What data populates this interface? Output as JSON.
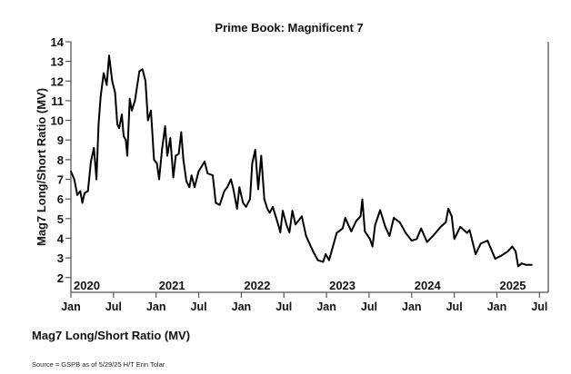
{
  "chart_data": {
    "type": "line",
    "title": "Prime Book: Magnificent 7",
    "xlabel": "",
    "ylabel": "Mag7 Long/Short Ratio (MV)",
    "ylim": [
      1.25,
      14
    ],
    "xlim": [
      2020.0,
      2025.6
    ],
    "yticks": [
      2,
      3,
      4,
      5,
      6,
      7,
      8,
      9,
      10,
      11,
      12,
      13,
      14
    ],
    "xticks": [
      {
        "x": 2020.0,
        "label": "Jan"
      },
      {
        "x": 2020.5,
        "label": "Jul"
      },
      {
        "x": 2021.0,
        "label": "Jan"
      },
      {
        "x": 2021.5,
        "label": "Jul"
      },
      {
        "x": 2022.0,
        "label": "Jan"
      },
      {
        "x": 2022.5,
        "label": "Jul"
      },
      {
        "x": 2023.0,
        "label": "Jan"
      },
      {
        "x": 2023.5,
        "label": "Jul"
      },
      {
        "x": 2024.0,
        "label": "Jan"
      },
      {
        "x": 2024.5,
        "label": "Jul"
      },
      {
        "x": 2025.0,
        "label": "Jan"
      },
      {
        "x": 2025.5,
        "label": "Jul"
      }
    ],
    "year_labels": [
      {
        "x": 2020.0,
        "label": "2020"
      },
      {
        "x": 2021.0,
        "label": "2021"
      },
      {
        "x": 2022.0,
        "label": "2022"
      },
      {
        "x": 2023.0,
        "label": "2023"
      },
      {
        "x": 2024.0,
        "label": "2024"
      },
      {
        "x": 2025.0,
        "label": "2025"
      }
    ],
    "grid": false,
    "series": [
      {
        "name": "Mag7 Long/Short Ratio (MV)",
        "color": "#000000",
        "x": [
          2020.0,
          2020.04,
          2020.075,
          2020.11,
          2020.135,
          2020.16,
          2020.2,
          2020.235,
          2020.27,
          2020.3,
          2020.324,
          2020.349,
          2020.384,
          2020.42,
          2020.448,
          2020.484,
          2020.519,
          2020.544,
          2020.566,
          2020.598,
          2020.619,
          2020.644,
          2020.662,
          2020.69,
          2020.715,
          2020.751,
          2020.804,
          2020.84,
          2020.875,
          2020.904,
          2020.939,
          2020.975,
          2021.01,
          2021.035,
          2021.071,
          2021.106,
          2021.131,
          2021.167,
          2021.202,
          2021.231,
          2021.266,
          2021.295,
          2021.32,
          2021.355,
          2021.391,
          2021.416,
          2021.451,
          2021.498,
          2021.569,
          2021.604,
          2021.665,
          2021.7,
          2021.747,
          2021.8,
          2021.836,
          2021.878,
          2021.907,
          2021.95,
          2021.978,
          2022.02,
          2022.056,
          2022.102,
          2022.128,
          2022.163,
          2022.199,
          2022.234,
          2022.27,
          2022.305,
          2022.334,
          2022.369,
          2022.405,
          2022.44,
          2022.458,
          2022.487,
          2022.529,
          2022.565,
          2022.6,
          2022.636,
          2022.69,
          2022.71,
          2022.76,
          2022.8,
          2022.85,
          2022.9,
          2022.96,
          2022.99,
          2023.03,
          2023.06,
          2023.12,
          2023.19,
          2023.22,
          2023.29,
          2023.35,
          2023.4,
          2023.42,
          2023.45,
          2023.51,
          2023.54,
          2023.57,
          2023.63,
          2023.69,
          2023.74,
          2023.79,
          2023.86,
          2023.93,
          2024.0,
          2024.06,
          2024.11,
          2024.18,
          2024.25,
          2024.34,
          2024.4,
          2024.43,
          2024.47,
          2024.5,
          2024.57,
          2024.65,
          2024.68,
          2024.75,
          2024.81,
          2024.89,
          2024.98,
          2025.05,
          2025.13,
          2025.18,
          2025.22,
          2025.25,
          2025.29,
          2025.34,
          2025.41
        ],
        "y": [
          7.4,
          7.0,
          6.2,
          6.4,
          5.8,
          6.3,
          6.4,
          7.9,
          8.6,
          7.0,
          9.8,
          11.2,
          12.4,
          11.8,
          13.3,
          12.0,
          11.4,
          9.8,
          9.6,
          10.3,
          9.2,
          9.0,
          8.2,
          11.1,
          10.5,
          11.0,
          12.5,
          12.6,
          12.0,
          10.0,
          10.5,
          8.0,
          7.8,
          7.0,
          8.6,
          9.7,
          8.2,
          9.1,
          7.1,
          8.2,
          8.3,
          9.4,
          8.0,
          6.9,
          6.6,
          7.2,
          6.6,
          7.4,
          7.9,
          7.3,
          7.2,
          5.8,
          5.7,
          6.4,
          6.6,
          7.0,
          6.5,
          5.5,
          6.6,
          5.8,
          5.6,
          6.0,
          7.8,
          8.5,
          6.5,
          8.2,
          6.0,
          5.5,
          5.3,
          5.6,
          5.1,
          4.6,
          4.3,
          5.4,
          4.7,
          4.3,
          5.4,
          4.7,
          5.0,
          5.12,
          4.12,
          3.73,
          3.27,
          2.88,
          2.8,
          3.19,
          2.88,
          3.34,
          4.27,
          4.5,
          5.04,
          4.35,
          4.89,
          5.12,
          5.97,
          4.35,
          3.96,
          3.58,
          4.66,
          5.43,
          4.58,
          4.12,
          5.04,
          4.81,
          4.27,
          3.88,
          3.96,
          4.5,
          3.81,
          4.12,
          4.58,
          4.81,
          5.51,
          5.12,
          3.96,
          4.58,
          4.27,
          4.42,
          3.19,
          3.73,
          3.88,
          2.96,
          3.11,
          3.34,
          3.58,
          3.34,
          2.57,
          2.72,
          2.65,
          2.65
        ]
      }
    ]
  },
  "legend_label": "Mag7 Long/Short Ratio (MV)",
  "source": "Source = GSPB as of 5/29/25 H/T Erin Tolar"
}
